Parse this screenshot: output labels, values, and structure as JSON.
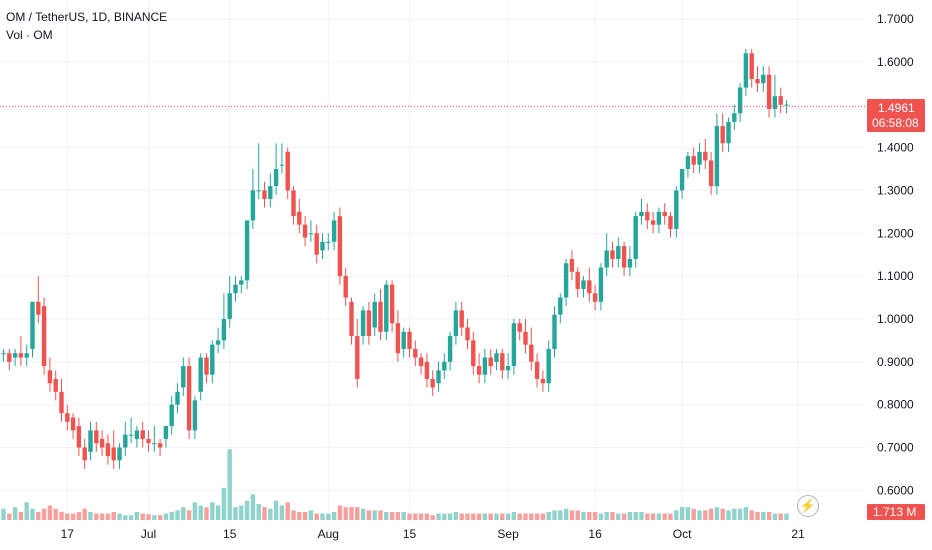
{
  "header": {
    "symbol_line": "OM / TetherUS, 1D, BINANCE",
    "volume_line": "Vol · OM"
  },
  "price_label": {
    "price": "1.4961",
    "countdown": "06:58:08"
  },
  "volume_label": "1.713 M",
  "icons": {
    "bolt": "lightning-bolt-icon"
  },
  "colors": {
    "up": "#26a69a",
    "down": "#ef5350",
    "up_vol": "#8fd3cc",
    "down_vol": "#f6a09e"
  },
  "chart_data": {
    "type": "candlestick",
    "symbol": "OM / TetherUS",
    "interval": "1D",
    "exchange": "BINANCE",
    "y_ticks": [
      "1.7000",
      "1.6000",
      "1.5000",
      "1.4000",
      "1.3000",
      "1.2000",
      "1.1000",
      "1.0000",
      "0.9000",
      "0.8000",
      "0.7000",
      "0.6000"
    ],
    "ylim": [
      0.55,
      1.73
    ],
    "x_ticks": [
      {
        "label": "17",
        "index": 11
      },
      {
        "label": "Jul",
        "index": 25
      },
      {
        "label": "15",
        "index": 39
      },
      {
        "label": "Aug",
        "index": 56
      },
      {
        "label": "15",
        "index": 70
      },
      {
        "label": "Sep",
        "index": 87
      },
      {
        "label": "16",
        "index": 102
      },
      {
        "label": "Oct",
        "index": 117
      },
      {
        "label": "21",
        "index": 137
      }
    ],
    "last_price": 1.4961,
    "candles": [
      [
        0.92,
        0.93,
        0.92
      ],
      [
        0.92,
        0.93,
        0.9
      ],
      [
        0.91,
        0.93,
        0.92
      ],
      [
        0.92,
        0.96,
        0.91
      ],
      [
        0.91,
        0.94,
        0.92
      ],
      [
        0.93,
        1.04,
        1.04
      ],
      [
        1.04,
        1.1,
        1.01
      ],
      [
        1.03,
        1.05,
        0.89
      ],
      [
        0.88,
        0.91,
        0.85
      ],
      [
        0.86,
        0.88,
        0.83
      ],
      [
        0.83,
        0.86,
        0.78
      ],
      [
        0.78,
        0.8,
        0.76
      ],
      [
        0.77,
        0.78,
        0.74
      ],
      [
        0.75,
        0.77,
        0.7
      ],
      [
        0.7,
        0.72,
        0.67
      ],
      [
        0.69,
        0.76,
        0.74
      ],
      [
        0.74,
        0.76,
        0.71
      ],
      [
        0.72,
        0.74,
        0.7
      ],
      [
        0.71,
        0.73,
        0.68
      ],
      [
        0.7,
        0.74,
        0.67
      ],
      [
        0.67,
        0.71,
        0.7
      ],
      [
        0.7,
        0.76,
        0.73
      ],
      [
        0.73,
        0.77,
        0.73
      ],
      [
        0.72,
        0.75,
        0.74
      ],
      [
        0.74,
        0.76,
        0.72
      ],
      [
        0.72,
        0.74,
        0.71
      ],
      [
        0.71,
        0.75,
        0.71
      ],
      [
        0.71,
        0.72,
        0.7
      ],
      [
        0.72,
        0.75,
        0.75
      ],
      [
        0.75,
        0.82,
        0.8
      ],
      [
        0.8,
        0.85,
        0.83
      ],
      [
        0.84,
        0.91,
        0.89
      ],
      [
        0.89,
        0.91,
        0.74
      ],
      [
        0.74,
        0.82,
        0.81
      ],
      [
        0.83,
        0.92,
        0.91
      ],
      [
        0.91,
        0.92,
        0.87
      ],
      [
        0.87,
        0.95,
        0.94
      ],
      [
        0.94,
        0.98,
        0.95
      ],
      [
        0.95,
        1.06,
        1.0
      ],
      [
        1.0,
        1.1,
        1.06
      ],
      [
        1.06,
        1.1,
        1.08
      ],
      [
        1.08,
        1.1,
        1.09
      ],
      [
        1.09,
        1.18,
        1.23
      ],
      [
        1.23,
        1.35,
        1.3
      ],
      [
        1.3,
        1.41,
        1.3
      ],
      [
        1.3,
        1.32,
        1.28
      ],
      [
        1.28,
        1.34,
        1.31
      ],
      [
        1.31,
        1.41,
        1.35
      ],
      [
        1.36,
        1.41,
        1.36
      ],
      [
        1.39,
        1.4,
        1.3
      ],
      [
        1.3,
        1.31,
        1.24
      ],
      [
        1.25,
        1.28,
        1.22
      ],
      [
        1.22,
        1.24,
        1.19
      ],
      [
        1.2,
        1.23,
        1.2
      ],
      [
        1.2,
        1.22,
        1.15
      ],
      [
        1.16,
        1.2,
        1.18
      ],
      [
        1.18,
        1.2,
        1.18
      ],
      [
        1.18,
        1.25,
        1.23
      ],
      [
        1.24,
        1.26,
        1.1
      ],
      [
        1.1,
        1.12,
        1.05
      ],
      [
        1.04,
        1.05,
        0.96
      ],
      [
        0.96,
        1.0,
        0.86
      ],
      [
        0.96,
        1.03,
        1.02
      ],
      [
        1.02,
        1.04,
        0.96
      ],
      [
        0.98,
        1.06,
        1.04
      ],
      [
        1.04,
        1.07,
        0.97
      ],
      [
        0.97,
        1.09,
        1.08
      ],
      [
        1.08,
        1.09,
        0.99
      ],
      [
        0.99,
        1.02,
        0.92
      ],
      [
        0.93,
        0.98,
        0.97
      ],
      [
        0.97,
        0.98,
        0.93
      ],
      [
        0.93,
        0.95,
        0.91
      ],
      [
        0.91,
        0.92,
        0.89
      ],
      [
        0.9,
        0.92,
        0.86
      ],
      [
        0.86,
        0.88,
        0.84
      ],
      [
        0.85,
        0.9,
        0.88
      ],
      [
        0.88,
        0.92,
        0.9
      ],
      [
        0.9,
        0.97,
        0.96
      ],
      [
        0.96,
        1.04,
        1.02
      ],
      [
        1.02,
        1.04,
        0.98
      ],
      [
        0.98,
        1.0,
        0.95
      ],
      [
        0.95,
        0.97,
        0.89
      ],
      [
        0.89,
        0.92,
        0.87
      ],
      [
        0.87,
        0.93,
        0.91
      ],
      [
        0.91,
        0.93,
        0.89
      ],
      [
        0.9,
        0.93,
        0.92
      ],
      [
        0.92,
        0.93,
        0.88
      ],
      [
        0.88,
        0.92,
        0.89
      ],
      [
        0.89,
        1.0,
        0.99
      ],
      [
        0.99,
        1.0,
        0.97
      ],
      [
        0.97,
        1.0,
        0.94
      ],
      [
        0.94,
        0.98,
        0.9
      ],
      [
        0.9,
        0.92,
        0.86
      ],
      [
        0.86,
        0.88,
        0.85
      ],
      [
        0.85,
        0.95,
        0.93
      ],
      [
        0.93,
        1.03,
        1.01
      ],
      [
        1.01,
        1.06,
        1.05
      ],
      [
        1.05,
        1.14,
        1.13
      ],
      [
        1.14,
        1.16,
        1.11
      ],
      [
        1.11,
        1.12,
        1.07
      ],
      [
        1.07,
        1.1,
        1.09
      ],
      [
        1.09,
        1.12,
        1.06
      ],
      [
        1.06,
        1.08,
        1.04
      ],
      [
        1.04,
        1.13,
        1.12
      ],
      [
        1.12,
        1.2,
        1.16
      ],
      [
        1.16,
        1.18,
        1.14
      ],
      [
        1.14,
        1.19,
        1.17
      ],
      [
        1.17,
        1.18,
        1.12
      ],
      [
        1.12,
        1.17,
        1.14
      ],
      [
        1.14,
        1.25,
        1.24
      ],
      [
        1.24,
        1.28,
        1.25
      ],
      [
        1.25,
        1.27,
        1.23
      ],
      [
        1.23,
        1.25,
        1.22
      ],
      [
        1.22,
        1.26,
        1.25
      ],
      [
        1.25,
        1.27,
        1.24
      ],
      [
        1.24,
        1.25,
        1.21
      ],
      [
        1.21,
        1.31,
        1.3
      ],
      [
        1.3,
        1.35,
        1.35
      ],
      [
        1.35,
        1.39,
        1.38
      ],
      [
        1.38,
        1.4,
        1.36
      ],
      [
        1.36,
        1.41,
        1.39
      ],
      [
        1.39,
        1.42,
        1.37
      ],
      [
        1.37,
        1.39,
        1.31
      ],
      [
        1.31,
        1.48,
        1.45
      ],
      [
        1.45,
        1.48,
        1.41
      ],
      [
        1.41,
        1.47,
        1.46
      ],
      [
        1.46,
        1.5,
        1.48
      ],
      [
        1.48,
        1.55,
        1.54
      ],
      [
        1.54,
        1.63,
        1.62
      ],
      [
        1.62,
        1.63,
        1.56
      ],
      [
        1.56,
        1.59,
        1.55
      ],
      [
        1.55,
        1.59,
        1.57
      ],
      [
        1.57,
        1.59,
        1.49
      ],
      [
        1.49,
        1.57,
        1.52
      ],
      [
        1.52,
        1.54,
        1.5
      ],
      [
        1.5,
        1.51,
        1.5
      ]
    ],
    "volume_max": 2.8,
    "volumes": [
      0.35,
      0.2,
      0.4,
      0.25,
      0.55,
      0.35,
      0.25,
      0.35,
      0.45,
      0.35,
      0.25,
      0.2,
      0.2,
      0.25,
      0.35,
      0.25,
      0.2,
      0.2,
      0.2,
      0.25,
      0.2,
      0.15,
      0.15,
      0.25,
      0.2,
      0.18,
      0.15,
      0.15,
      0.2,
      0.25,
      0.3,
      0.4,
      0.3,
      0.55,
      0.45,
      0.4,
      0.55,
      0.45,
      1.0,
      2.2,
      0.4,
      0.45,
      0.6,
      0.8,
      0.5,
      0.4,
      0.35,
      0.6,
      0.45,
      0.55,
      0.3,
      0.25,
      0.25,
      0.3,
      0.2,
      0.2,
      0.2,
      0.25,
      0.45,
      0.4,
      0.4,
      0.4,
      0.35,
      0.3,
      0.3,
      0.3,
      0.25,
      0.25,
      0.25,
      0.25,
      0.2,
      0.2,
      0.2,
      0.2,
      0.15,
      0.2,
      0.2,
      0.2,
      0.25,
      0.2,
      0.2,
      0.2,
      0.2,
      0.2,
      0.2,
      0.2,
      0.2,
      0.2,
      0.25,
      0.2,
      0.2,
      0.2,
      0.2,
      0.2,
      0.25,
      0.3,
      0.3,
      0.35,
      0.3,
      0.3,
      0.25,
      0.25,
      0.25,
      0.2,
      0.25,
      0.25,
      0.2,
      0.2,
      0.25,
      0.25,
      0.25,
      0.2,
      0.2,
      0.2,
      0.2,
      0.2,
      0.3,
      0.4,
      0.4,
      0.35,
      0.3,
      0.3,
      0.35,
      0.4,
      0.35,
      0.3,
      0.35,
      0.35,
      0.4,
      0.3,
      0.25,
      0.25,
      0.25,
      0.2,
      0.2,
      0.2
    ]
  }
}
